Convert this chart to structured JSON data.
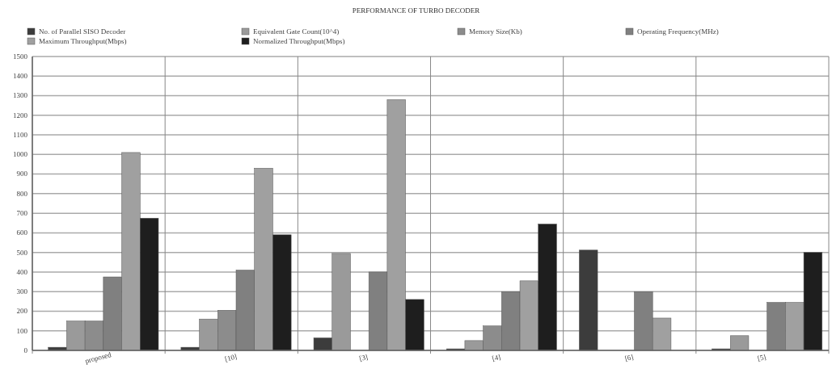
{
  "chart_data": {
    "type": "bar",
    "title": "PERFORMANCE OF TURBO DECODER",
    "categories": [
      "proposed",
      "[10]",
      "[3]",
      "[4]",
      "[6]",
      "[5]"
    ],
    "series": [
      {
        "name": "No. of Parallel SISO Decoder",
        "color": "#3c3c3c",
        "values": [
          16,
          16,
          64,
          8,
          512,
          8
        ]
      },
      {
        "name": "Equivalent Gate Count(10^4)",
        "color": "#9a9a9a",
        "values": [
          150,
          160,
          495,
          50,
          null,
          75
        ]
      },
      {
        "name": "Memory Size(Kb)",
        "color": "#8c8c8c",
        "values": [
          150,
          205,
          null,
          125,
          null,
          null
        ]
      },
      {
        "name": "Operating Frequency(MHz)",
        "color": "#808080",
        "values": [
          375,
          410,
          400,
          300,
          300,
          245
        ]
      },
      {
        "name": "Maximum Throughput(Mbps)",
        "color": "#a0a0a0",
        "values": [
          1010,
          930,
          1280,
          355,
          165,
          245
        ]
      },
      {
        "name": "Normalized Throughput(Mbps)",
        "color": "#1e1e1e",
        "values": [
          675,
          590,
          260,
          645,
          null,
          500
        ]
      }
    ],
    "ylim": [
      0,
      1500
    ],
    "yticks": [
      0,
      100,
      200,
      300,
      400,
      500,
      600,
      700,
      800,
      900,
      1000,
      1100,
      1200,
      1300,
      1400,
      1500
    ],
    "grid": true,
    "legend": "top"
  }
}
